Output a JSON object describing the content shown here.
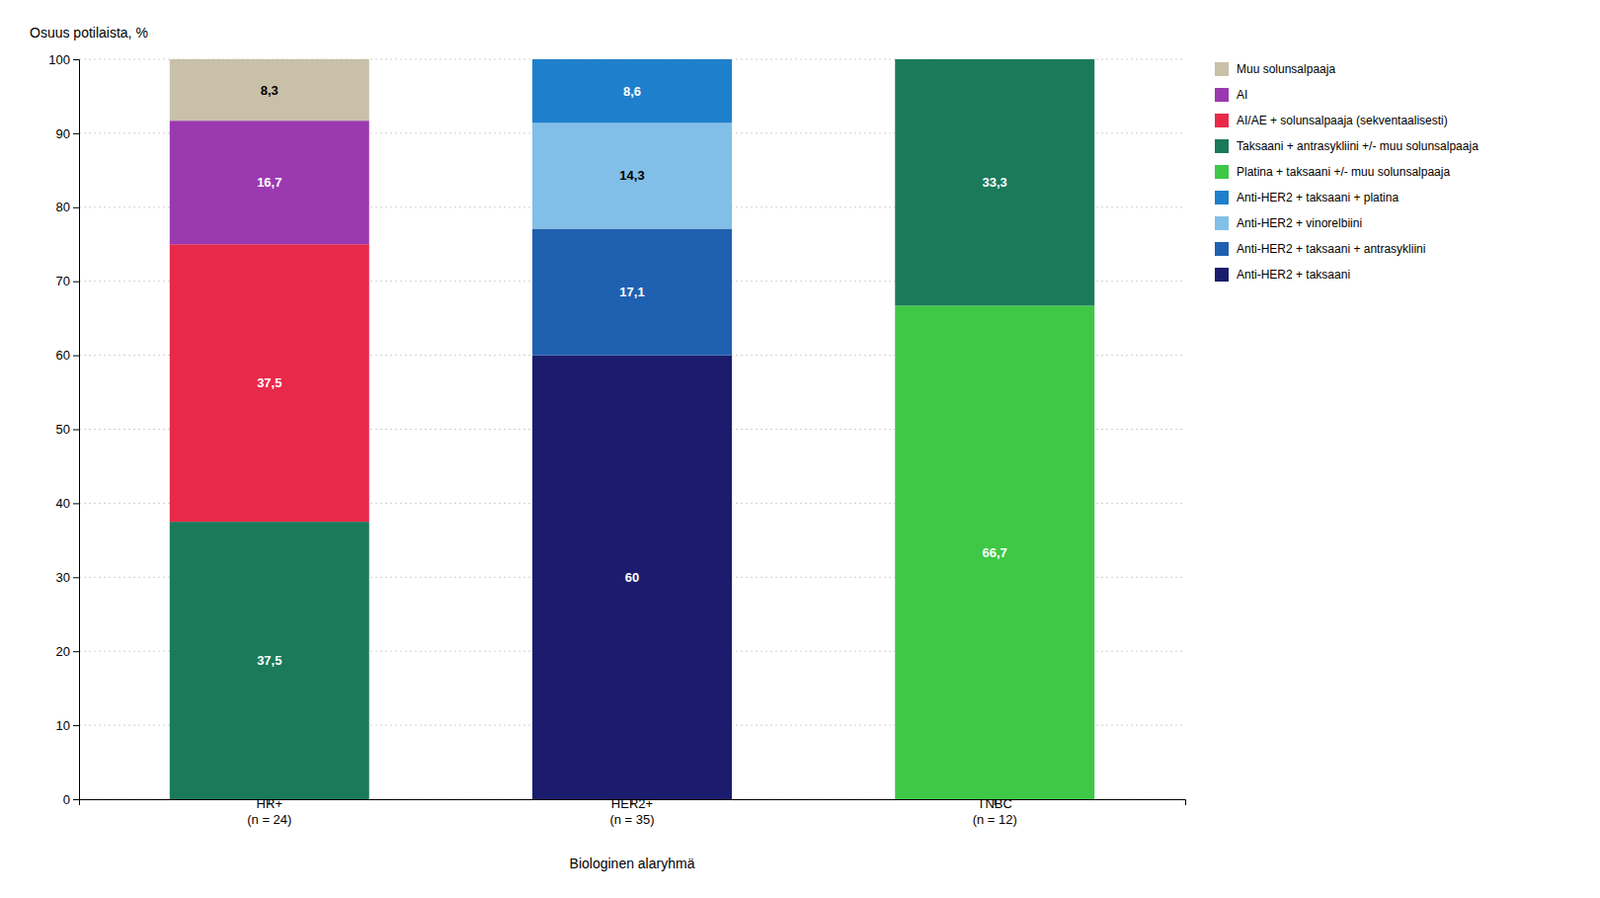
{
  "chart_data": {
    "type": "bar",
    "stacked": true,
    "categories": [
      "HR+\n(n = 24)",
      "HER2+\n(n = 35)",
      "TNBC\n(n = 12)"
    ],
    "xlabel": "Biologinen alaryhmä",
    "ylabel": "Osuus potilaista, %",
    "ylim": [
      0,
      100
    ],
    "yticks": [
      0,
      10,
      20,
      30,
      40,
      50,
      60,
      70,
      80,
      90,
      100
    ],
    "grid": true,
    "legend": "right",
    "data_labels": true,
    "series": [
      {
        "name": "Anti-HER2 + taksaani",
        "color": "#1c1c6e",
        "values": [
          0,
          60.0,
          0
        ],
        "value_labels": [
          null,
          "60",
          null
        ]
      },
      {
        "name": "Anti-HER2 + taksaani + antrasykliini",
        "color": "#2060b0",
        "values": [
          0,
          17.1,
          0
        ],
        "value_labels": [
          null,
          "17,1",
          null
        ]
      },
      {
        "name": "Anti-HER2 + vinorelbiini",
        "color": "#82bfe8",
        "values": [
          0,
          14.3,
          0
        ],
        "value_labels": [
          null,
          "14,3",
          null
        ]
      },
      {
        "name": "Anti-HER2 + taksaani + platina",
        "color": "#1e80cc",
        "values": [
          0,
          8.6,
          0
        ],
        "value_labels": [
          null,
          "8,6",
          null
        ]
      },
      {
        "name": "Platina + taksaani +/- muu solunsalpaaja",
        "color": "#3ec846",
        "values": [
          0,
          0,
          66.7
        ],
        "value_labels": [
          null,
          null,
          "66,7"
        ]
      },
      {
        "name": "Taksaani + antrasykliini +/- muu solunsalpaaja",
        "color": "#1a7a5a",
        "values": [
          37.5,
          0,
          33.3
        ],
        "value_labels": [
          "37,5",
          null,
          "33,3"
        ]
      },
      {
        "name": "AI/AE + solunsalpaaja (sekventaalisesti)",
        "color": "#e8294a",
        "values": [
          37.5,
          0,
          0
        ],
        "value_labels": [
          "37,5",
          null,
          null
        ]
      },
      {
        "name": "AI",
        "color": "#9b3ab0",
        "values": [
          16.7,
          0,
          0
        ],
        "value_labels": [
          "16,7",
          null,
          null
        ]
      },
      {
        "name": "Muu solunsalpaaja",
        "color": "#c8c0a8",
        "values": [
          8.3,
          0,
          0
        ],
        "value_labels": [
          "8,3",
          null,
          null
        ]
      }
    ]
  }
}
